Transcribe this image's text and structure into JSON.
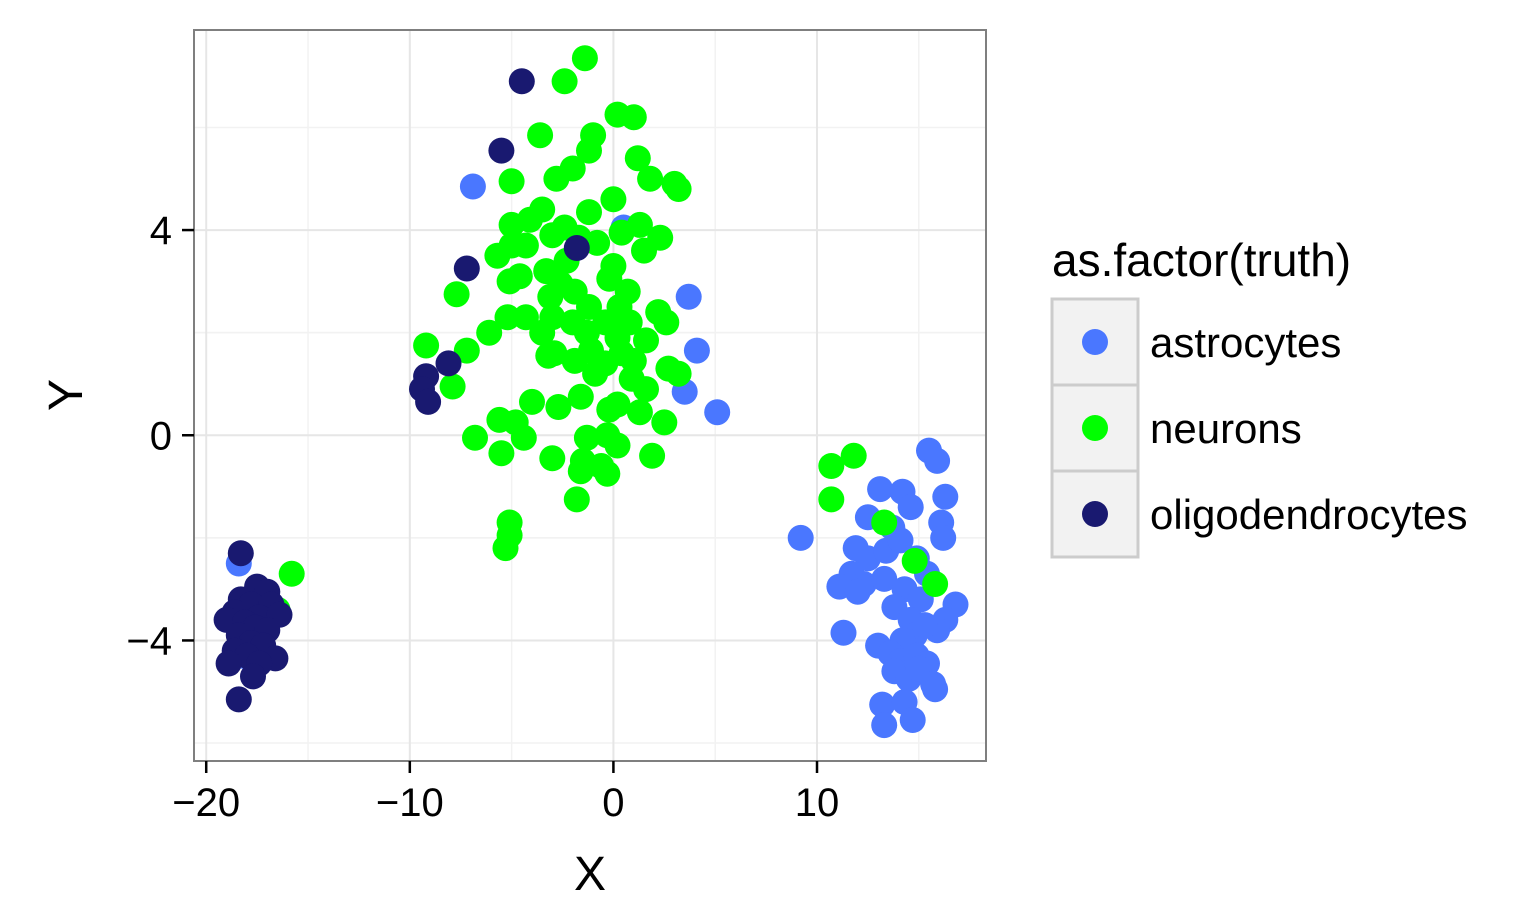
{
  "chart_data": {
    "type": "scatter",
    "title": "",
    "xlabel": "X",
    "ylabel": "Y",
    "xlim": [
      -20.6,
      18.3
    ],
    "ylim": [
      -6.35,
      7.9
    ],
    "xticks": [
      -20,
      -10,
      0,
      10
    ],
    "xtick_labels": [
      "−20",
      "−10",
      "0",
      "10"
    ],
    "yticks": [
      -4,
      0,
      4
    ],
    "ytick_labels": [
      "−4",
      "0",
      "4"
    ],
    "grid": true,
    "legend": {
      "title": "as.factor(truth)",
      "position": "right"
    },
    "series": [
      {
        "name": "astrocytes",
        "color": "#4A77FF",
        "points": [
          [
            -18.4,
            -2.5
          ],
          [
            -18.2,
            -4.3
          ],
          [
            -17.8,
            -3.9
          ],
          [
            -6.9,
            4.85
          ],
          [
            0.5,
            4.05
          ],
          [
            3.7,
            2.7
          ],
          [
            4.1,
            1.65
          ],
          [
            3.5,
            0.85
          ],
          [
            5.1,
            0.45
          ],
          [
            15.5,
            -0.3
          ],
          [
            15.9,
            -0.5
          ],
          [
            16.3,
            -1.2
          ],
          [
            16.1,
            -1.7
          ],
          [
            16.2,
            -2.0
          ],
          [
            13.1,
            -1.05
          ],
          [
            14.2,
            -1.1
          ],
          [
            14.6,
            -1.4
          ],
          [
            12.5,
            -1.6
          ],
          [
            13.7,
            -1.8
          ],
          [
            9.2,
            -2.0
          ],
          [
            11.9,
            -2.2
          ],
          [
            12.5,
            -2.4
          ],
          [
            13.4,
            -2.25
          ],
          [
            14.1,
            -2.05
          ],
          [
            14.9,
            -2.4
          ],
          [
            15.4,
            -2.7
          ],
          [
            11.7,
            -2.7
          ],
          [
            12.3,
            -2.9
          ],
          [
            13.3,
            -2.8
          ],
          [
            14.3,
            -3.0
          ],
          [
            15.1,
            -3.2
          ],
          [
            11.1,
            -2.95
          ],
          [
            12.0,
            -3.05
          ],
          [
            13.8,
            -3.35
          ],
          [
            14.6,
            -3.6
          ],
          [
            16.8,
            -3.3
          ],
          [
            16.3,
            -3.6
          ],
          [
            15.9,
            -3.8
          ],
          [
            14.8,
            -3.9
          ],
          [
            15.3,
            -3.7
          ],
          [
            11.3,
            -3.85
          ],
          [
            14.2,
            -4.0
          ],
          [
            13.0,
            -4.1
          ],
          [
            13.6,
            -4.25
          ],
          [
            14.1,
            -4.4
          ],
          [
            14.9,
            -4.3
          ],
          [
            15.4,
            -4.45
          ],
          [
            13.8,
            -4.6
          ],
          [
            14.5,
            -4.75
          ],
          [
            15.0,
            -4.55
          ],
          [
            15.7,
            -4.85
          ],
          [
            15.8,
            -4.95
          ],
          [
            13.2,
            -5.25
          ],
          [
            14.3,
            -5.2
          ],
          [
            13.3,
            -5.65
          ],
          [
            14.7,
            -5.55
          ]
        ]
      },
      {
        "name": "neurons",
        "color": "#00FF00",
        "points": [
          [
            -1.4,
            7.35
          ],
          [
            -2.4,
            6.9
          ],
          [
            0.2,
            6.25
          ],
          [
            1.0,
            6.2
          ],
          [
            -3.6,
            5.85
          ],
          [
            -1.0,
            5.85
          ],
          [
            -1.2,
            5.55
          ],
          [
            1.2,
            5.4
          ],
          [
            -2.0,
            5.2
          ],
          [
            -2.8,
            5.0
          ],
          [
            -5.0,
            4.95
          ],
          [
            1.8,
            5.0
          ],
          [
            3.0,
            4.9
          ],
          [
            3.2,
            4.8
          ],
          [
            0.0,
            4.6
          ],
          [
            -1.2,
            4.35
          ],
          [
            -3.5,
            4.4
          ],
          [
            -4.1,
            4.2
          ],
          [
            -5.0,
            4.1
          ],
          [
            -2.4,
            4.05
          ],
          [
            1.3,
            4.1
          ],
          [
            0.4,
            3.95
          ],
          [
            -3.0,
            3.9
          ],
          [
            -1.7,
            3.85
          ],
          [
            2.3,
            3.85
          ],
          [
            -0.8,
            3.75
          ],
          [
            -5.0,
            3.7
          ],
          [
            -4.3,
            3.7
          ],
          [
            -5.7,
            3.5
          ],
          [
            1.5,
            3.6
          ],
          [
            -2.3,
            3.4
          ],
          [
            -3.3,
            3.2
          ],
          [
            0.0,
            3.3
          ],
          [
            -0.2,
            3.05
          ],
          [
            -4.6,
            3.1
          ],
          [
            -5.1,
            3.0
          ],
          [
            -2.6,
            2.95
          ],
          [
            0.7,
            2.8
          ],
          [
            -1.9,
            2.8
          ],
          [
            -3.1,
            2.7
          ],
          [
            -7.7,
            2.75
          ],
          [
            -1.2,
            2.5
          ],
          [
            0.3,
            2.5
          ],
          [
            2.2,
            2.4
          ],
          [
            -4.3,
            2.3
          ],
          [
            -5.2,
            2.3
          ],
          [
            -3.0,
            2.3
          ],
          [
            -2.0,
            2.2
          ],
          [
            -0.4,
            2.2
          ],
          [
            0.8,
            2.2
          ],
          [
            2.6,
            2.2
          ],
          [
            -6.1,
            2.0
          ],
          [
            -3.5,
            2.0
          ],
          [
            -1.3,
            2.0
          ],
          [
            0.2,
            1.9
          ],
          [
            1.6,
            1.85
          ],
          [
            -9.2,
            1.75
          ],
          [
            -7.2,
            1.65
          ],
          [
            -2.9,
            1.6
          ],
          [
            -1.1,
            1.65
          ],
          [
            0.4,
            1.6
          ],
          [
            -3.2,
            1.55
          ],
          [
            -1.9,
            1.45
          ],
          [
            -0.4,
            1.4
          ],
          [
            1.0,
            1.45
          ],
          [
            2.7,
            1.3
          ],
          [
            3.2,
            1.2
          ],
          [
            -0.9,
            1.2
          ],
          [
            0.9,
            1.1
          ],
          [
            -7.9,
            0.95
          ],
          [
            1.6,
            0.9
          ],
          [
            -1.6,
            0.75
          ],
          [
            0.2,
            0.6
          ],
          [
            -4.0,
            0.65
          ],
          [
            -2.7,
            0.55
          ],
          [
            -0.2,
            0.5
          ],
          [
            1.3,
            0.45
          ],
          [
            -5.6,
            0.3
          ],
          [
            -4.8,
            0.25
          ],
          [
            2.5,
            0.25
          ],
          [
            -0.3,
            0.0
          ],
          [
            -6.8,
            -0.05
          ],
          [
            -4.4,
            -0.05
          ],
          [
            -1.3,
            -0.05
          ],
          [
            0.2,
            -0.2
          ],
          [
            -5.5,
            -0.35
          ],
          [
            -3.0,
            -0.45
          ],
          [
            -1.5,
            -0.5
          ],
          [
            1.9,
            -0.4
          ],
          [
            -0.6,
            -0.6
          ],
          [
            -1.6,
            -0.7
          ],
          [
            -0.3,
            -0.75
          ],
          [
            11.8,
            -0.4
          ],
          [
            10.7,
            -0.6
          ],
          [
            10.7,
            -1.25
          ],
          [
            -1.8,
            -1.25
          ],
          [
            13.3,
            -1.7
          ],
          [
            -5.1,
            -1.7
          ],
          [
            -5.1,
            -1.95
          ],
          [
            -5.3,
            -2.2
          ],
          [
            14.8,
            -2.45
          ],
          [
            -15.8,
            -2.7
          ],
          [
            15.8,
            -2.9
          ],
          [
            -16.5,
            -3.4
          ]
        ]
      },
      {
        "name": "oligodendrocytes",
        "color": "#191970",
        "points": [
          [
            -4.5,
            6.9
          ],
          [
            -5.5,
            5.55
          ],
          [
            -1.8,
            3.65
          ],
          [
            -7.2,
            3.25
          ],
          [
            -8.1,
            1.4
          ],
          [
            -9.2,
            1.15
          ],
          [
            -9.4,
            0.9
          ],
          [
            -9.1,
            0.65
          ],
          [
            -18.3,
            -2.3
          ],
          [
            -17.5,
            -2.95
          ],
          [
            -17.0,
            -3.05
          ],
          [
            -18.3,
            -3.2
          ],
          [
            -17.8,
            -3.3
          ],
          [
            -16.8,
            -3.3
          ],
          [
            -18.6,
            -3.45
          ],
          [
            -17.4,
            -3.55
          ],
          [
            -16.4,
            -3.5
          ],
          [
            -19.0,
            -3.6
          ],
          [
            -18.1,
            -3.65
          ],
          [
            -17.6,
            -3.75
          ],
          [
            -17.0,
            -3.8
          ],
          [
            -18.4,
            -3.9
          ],
          [
            -17.8,
            -4.05
          ],
          [
            -17.2,
            -4.1
          ],
          [
            -18.6,
            -4.2
          ],
          [
            -18.0,
            -4.3
          ],
          [
            -16.6,
            -4.35
          ],
          [
            -17.4,
            -4.45
          ],
          [
            -18.9,
            -4.45
          ],
          [
            -17.7,
            -4.7
          ],
          [
            -18.4,
            -5.15
          ]
        ]
      }
    ]
  }
}
